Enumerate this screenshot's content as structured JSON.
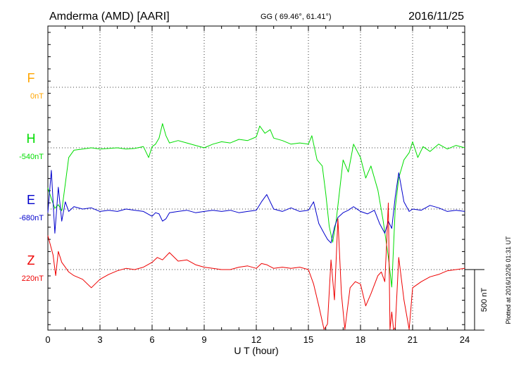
{
  "header": {
    "station": "Amderma (AMD)  [AARI]",
    "coords": "GG ( 69.46°,  61.41°)",
    "date": "2016/11/25"
  },
  "footer": {
    "xlabel": "U T (hour)",
    "scale_label": "500 nT",
    "plotted": "Plotted at 2016/12/26 01:31  UT"
  },
  "chart_data": {
    "type": "line",
    "title": "Amderma (AMD)  [AARI]",
    "xlabel": "U T (hour)",
    "ylabel": "",
    "xlim": [
      0,
      24
    ],
    "x_ticks": [
      0,
      3,
      6,
      9,
      12,
      15,
      18,
      21,
      24
    ],
    "grid": true,
    "scale_bar_nT": 500,
    "components": [
      {
        "name": "F",
        "baseline": "0nT",
        "color": "#ffa500"
      },
      {
        "name": "H",
        "baseline": "-540nT",
        "color": "#00dd00"
      },
      {
        "name": "E",
        "baseline": "-680nT",
        "color": "#0000cc"
      },
      {
        "name": "Z",
        "baseline": "220nT",
        "color": "#ee0000"
      }
    ],
    "series": [
      {
        "name": "H",
        "color": "#00dd00",
        "x": [
          0,
          0.2,
          0.4,
          0.6,
          0.8,
          1,
          1.2,
          1.5,
          2,
          2.5,
          3,
          3.5,
          4,
          4.5,
          5,
          5.5,
          5.8,
          6,
          6.2,
          6.4,
          6.6,
          6.8,
          7,
          7.5,
          8,
          8.5,
          9,
          9.5,
          10,
          10.5,
          11,
          11.5,
          12,
          12.2,
          12.5,
          12.8,
          13,
          13.5,
          14,
          14.5,
          15,
          15.2,
          15.5,
          15.8,
          16,
          16.2,
          16.4,
          16.6,
          16.8,
          17,
          17.3,
          17.6,
          18,
          18.3,
          18.6,
          19,
          19.3,
          19.6,
          19.8,
          20,
          20.2,
          20.5,
          20.8,
          21,
          21.3,
          21.6,
          22,
          22.5,
          23,
          23.5,
          24
        ],
        "values": [
          -330,
          -420,
          -500,
          -470,
          -520,
          -300,
          -80,
          -20,
          -10,
          0,
          -10,
          -5,
          0,
          -10,
          -5,
          10,
          -80,
          10,
          30,
          80,
          200,
          100,
          40,
          60,
          40,
          20,
          0,
          30,
          50,
          40,
          70,
          60,
          90,
          180,
          120,
          150,
          80,
          60,
          30,
          40,
          30,
          100,
          -100,
          -150,
          -380,
          -650,
          -780,
          -600,
          -350,
          -100,
          -200,
          30,
          -80,
          -250,
          -150,
          -350,
          -600,
          -900,
          -1150,
          -500,
          -250,
          -100,
          -40,
          50,
          -80,
          10,
          -30,
          30,
          -10,
          20,
          0
        ]
      },
      {
        "name": "E",
        "color": "#0000cc",
        "x": [
          0,
          0.2,
          0.4,
          0.6,
          0.8,
          1,
          1.2,
          1.5,
          2,
          2.5,
          3,
          3.5,
          4,
          4.5,
          5,
          5.5,
          6,
          6.2,
          6.4,
          6.6,
          6.8,
          7,
          7.5,
          8,
          8.5,
          9,
          9.5,
          10,
          10.5,
          11,
          11.5,
          12,
          12.3,
          12.6,
          13,
          13.5,
          14,
          14.5,
          15,
          15.3,
          15.6,
          15.9,
          16.1,
          16.3,
          16.5,
          16.7,
          17,
          17.3,
          17.6,
          18,
          18.4,
          18.8,
          19.1,
          19.4,
          19.6,
          19.8,
          20,
          20.2,
          20.5,
          20.8,
          21,
          21.5,
          22,
          22.5,
          23,
          23.5,
          24
        ],
        "values": [
          -30,
          320,
          -200,
          180,
          -100,
          60,
          -20,
          20,
          0,
          10,
          -20,
          -10,
          -20,
          0,
          -10,
          -20,
          -60,
          -30,
          -40,
          -100,
          -80,
          -30,
          -20,
          -10,
          -30,
          -20,
          -10,
          -20,
          -10,
          -30,
          -20,
          -10,
          60,
          120,
          0,
          -20,
          10,
          -20,
          -10,
          60,
          -120,
          -200,
          -250,
          -280,
          -150,
          -70,
          -30,
          -10,
          20,
          -20,
          -40,
          -10,
          -120,
          -200,
          -100,
          -160,
          100,
          300,
          60,
          -20,
          0,
          -10,
          30,
          10,
          -20,
          -10,
          -20
        ]
      },
      {
        "name": "Z",
        "color": "#ee0000",
        "x": [
          0,
          0.15,
          0.3,
          0.45,
          0.6,
          0.8,
          1,
          1.2,
          1.5,
          2,
          2.5,
          3,
          3.5,
          4,
          4.5,
          5,
          5.5,
          6,
          6.3,
          6.6,
          7,
          7.5,
          8,
          8.5,
          9,
          9.5,
          10,
          10.5,
          11,
          11.5,
          12,
          12.3,
          12.6,
          13,
          13.5,
          14,
          14.5,
          15,
          15.3,
          15.6,
          15.9,
          16.1,
          16.3,
          16.5,
          16.7,
          16.9,
          17.1,
          17.4,
          17.7,
          18,
          18.3,
          18.6,
          19,
          19.2,
          19.4,
          19.5,
          19.6,
          19.7,
          19.8,
          19.9,
          20,
          20.2,
          20.5,
          20.8,
          21,
          21.5,
          22,
          22.5,
          23,
          23.5,
          24
        ],
        "values": [
          280,
          200,
          120,
          -50,
          150,
          60,
          20,
          -20,
          -50,
          -80,
          -150,
          -80,
          -40,
          -10,
          10,
          0,
          20,
          60,
          100,
          80,
          140,
          70,
          80,
          40,
          20,
          10,
          0,
          0,
          20,
          30,
          10,
          50,
          40,
          10,
          20,
          10,
          20,
          0,
          -120,
          -300,
          -700,
          -450,
          80,
          -250,
          420,
          -200,
          -550,
          -150,
          -100,
          -120,
          -300,
          -200,
          -50,
          -20,
          -100,
          200,
          550,
          -700,
          -350,
          -520,
          -480,
          100,
          -250,
          -500,
          -150,
          -100,
          -60,
          -40,
          -10,
          0,
          10
        ]
      }
    ],
    "offsets_nT": {
      "H": -540,
      "E": -680,
      "Z": 220
    }
  }
}
